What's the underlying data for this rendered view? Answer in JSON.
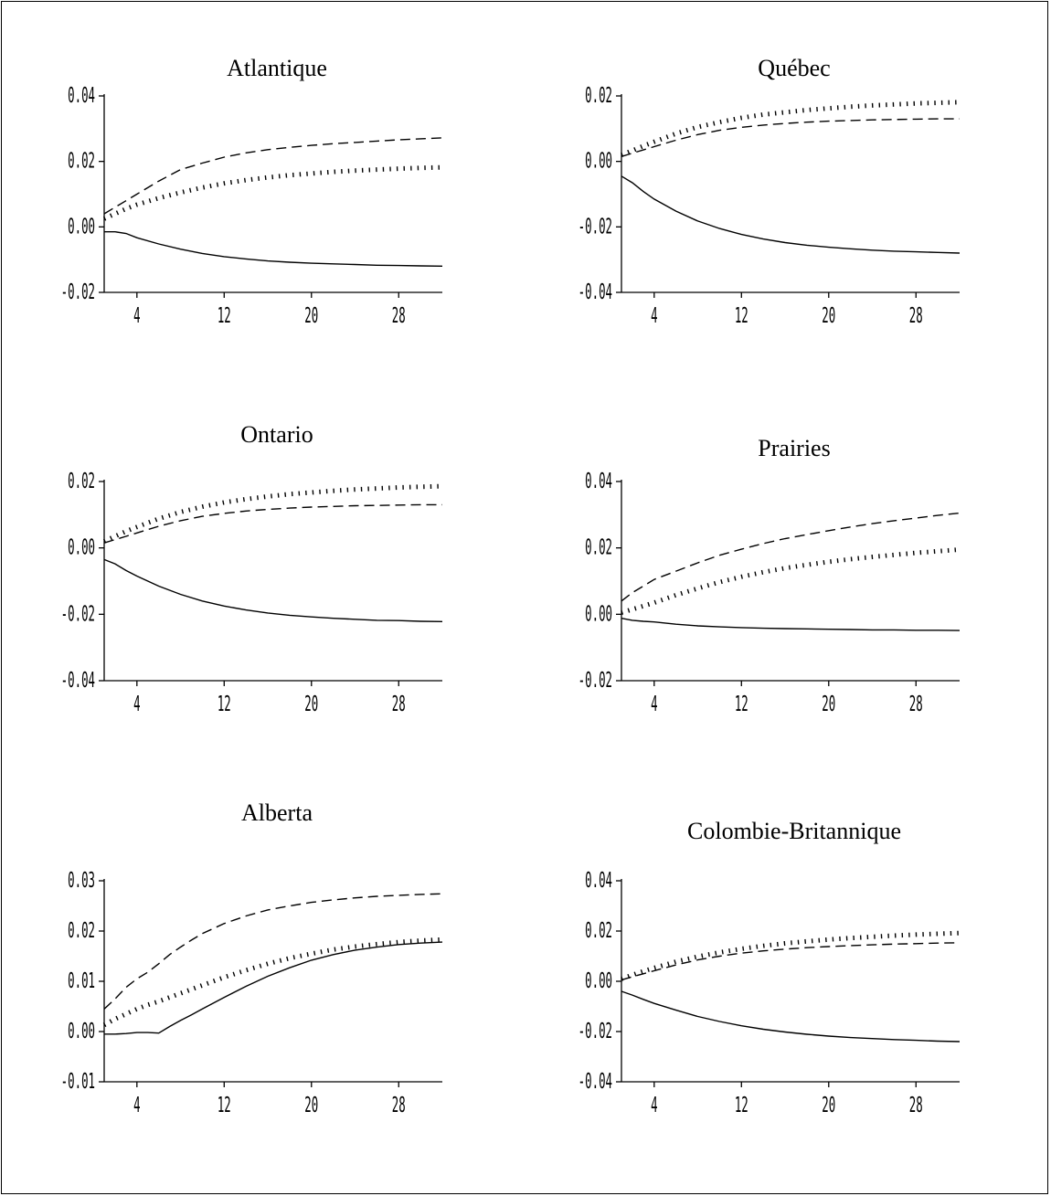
{
  "chart_data": [
    {
      "type": "line",
      "title": "Atlantique",
      "xlabel": "",
      "ylabel": "",
      "xlim": [
        1,
        32
      ],
      "ylim": [
        -0.02,
        0.04
      ],
      "xticks": [
        4,
        12,
        20,
        28
      ],
      "xtick_labels": [
        "4",
        "12",
        "20",
        "28"
      ],
      "yticks": [
        -0.02,
        0.0,
        0.02,
        0.04
      ],
      "ytick_labels": [
        "-0.02",
        "0.00",
        "0.02",
        "0.04"
      ],
      "grid": false,
      "x": [
        1,
        2,
        3,
        4,
        6,
        8,
        10,
        12,
        14,
        16,
        18,
        20,
        22,
        24,
        26,
        28,
        30,
        32
      ],
      "series": [
        {
          "style": "solid",
          "values": [
            -0.0015,
            -0.0015,
            -0.002,
            -0.0033,
            -0.0052,
            -0.0068,
            -0.0081,
            -0.0091,
            -0.0098,
            -0.0104,
            -0.0108,
            -0.0111,
            -0.0113,
            -0.0115,
            -0.0117,
            -0.0118,
            -0.0119,
            -0.012
          ]
        },
        {
          "style": "dashed",
          "values": [
            0.004,
            0.006,
            0.008,
            0.01,
            0.014,
            0.0175,
            0.0195,
            0.0213,
            0.0226,
            0.0236,
            0.0243,
            0.0249,
            0.0254,
            0.0258,
            0.0262,
            0.0266,
            0.0269,
            0.0272
          ]
        },
        {
          "style": "dotted",
          "values": [
            0.0025,
            0.004,
            0.0055,
            0.0068,
            0.0088,
            0.0105,
            0.012,
            0.0133,
            0.0143,
            0.0151,
            0.0158,
            0.0163,
            0.0168,
            0.0172,
            0.0175,
            0.0178,
            0.018,
            0.0182
          ]
        }
      ]
    },
    {
      "type": "line",
      "title": "Québec",
      "xlabel": "",
      "ylabel": "",
      "xlim": [
        1,
        32
      ],
      "ylim": [
        -0.04,
        0.02
      ],
      "xticks": [
        4,
        12,
        20,
        28
      ],
      "xtick_labels": [
        "4",
        "12",
        "20",
        "28"
      ],
      "yticks": [
        -0.04,
        -0.02,
        0.0,
        0.02
      ],
      "ytick_labels": [
        "-0.04",
        "-0.02",
        "0.00",
        "0.02"
      ],
      "grid": false,
      "x": [
        1,
        2,
        3,
        4,
        6,
        8,
        10,
        12,
        14,
        16,
        18,
        20,
        22,
        24,
        26,
        28,
        30,
        32
      ],
      "series": [
        {
          "style": "solid",
          "values": [
            -0.0045,
            -0.0065,
            -0.0092,
            -0.0115,
            -0.0152,
            -0.0182,
            -0.0205,
            -0.0223,
            -0.0237,
            -0.0248,
            -0.0256,
            -0.0262,
            -0.0267,
            -0.0271,
            -0.0274,
            -0.0276,
            -0.0278,
            -0.028
          ]
        },
        {
          "style": "dashed",
          "values": [
            0.0015,
            0.0025,
            0.0035,
            0.0045,
            0.0065,
            0.0082,
            0.0095,
            0.0104,
            0.0111,
            0.0116,
            0.012,
            0.0123,
            0.0125,
            0.0127,
            0.0128,
            0.0129,
            0.013,
            0.013
          ]
        },
        {
          "style": "dotted",
          "values": [
            0.002,
            0.0033,
            0.0047,
            0.006,
            0.0085,
            0.0105,
            0.012,
            0.0133,
            0.0143,
            0.015,
            0.0157,
            0.0162,
            0.0167,
            0.0171,
            0.0174,
            0.0177,
            0.0179,
            0.0181
          ]
        }
      ]
    },
    {
      "type": "line",
      "title": "Ontario",
      "xlabel": "",
      "ylabel": "",
      "xlim": [
        1,
        32
      ],
      "ylim": [
        -0.04,
        0.02
      ],
      "xticks": [
        4,
        12,
        20,
        28
      ],
      "xtick_labels": [
        "4",
        "12",
        "20",
        "28"
      ],
      "yticks": [
        -0.04,
        -0.02,
        0.0,
        0.02
      ],
      "ytick_labels": [
        "-0.04",
        "-0.02",
        "0.00",
        "0.02"
      ],
      "grid": false,
      "x": [
        1,
        2,
        3,
        4,
        6,
        8,
        10,
        12,
        14,
        16,
        18,
        20,
        22,
        24,
        26,
        28,
        30,
        32
      ],
      "series": [
        {
          "style": "solid",
          "values": [
            -0.0035,
            -0.0048,
            -0.0068,
            -0.0085,
            -0.0115,
            -0.014,
            -0.016,
            -0.0175,
            -0.0187,
            -0.0196,
            -0.0203,
            -0.0208,
            -0.0212,
            -0.0215,
            -0.0218,
            -0.0219,
            -0.0221,
            -0.0222
          ]
        },
        {
          "style": "dashed",
          "values": [
            0.0015,
            0.0025,
            0.0035,
            0.0045,
            0.0065,
            0.0082,
            0.0095,
            0.0104,
            0.0111,
            0.0116,
            0.012,
            0.0123,
            0.0125,
            0.0127,
            0.0128,
            0.0129,
            0.013,
            0.013
          ]
        },
        {
          "style": "dotted",
          "values": [
            0.002,
            0.0035,
            0.005,
            0.0063,
            0.0088,
            0.0108,
            0.0124,
            0.0137,
            0.0147,
            0.0155,
            0.0162,
            0.0167,
            0.0172,
            0.0176,
            0.0179,
            0.0182,
            0.0184,
            0.0186
          ]
        }
      ]
    },
    {
      "type": "line",
      "title": "Prairies",
      "xlabel": "",
      "ylabel": "",
      "xlim": [
        1,
        32
      ],
      "ylim": [
        -0.02,
        0.04
      ],
      "xticks": [
        4,
        12,
        20,
        28
      ],
      "xtick_labels": [
        "4",
        "12",
        "20",
        "28"
      ],
      "yticks": [
        -0.02,
        0.0,
        0.02,
        0.04
      ],
      "ytick_labels": [
        "-0.02",
        "0.00",
        "0.02",
        "0.04"
      ],
      "grid": false,
      "x": [
        1,
        2,
        3,
        4,
        6,
        8,
        10,
        12,
        14,
        16,
        18,
        20,
        22,
        24,
        26,
        28,
        30,
        32
      ],
      "series": [
        {
          "style": "solid",
          "values": [
            -0.0012,
            -0.0018,
            -0.0021,
            -0.0023,
            -0.003,
            -0.0035,
            -0.0038,
            -0.004,
            -0.0042,
            -0.0043,
            -0.0044,
            -0.0045,
            -0.0046,
            -0.0047,
            -0.0047,
            -0.0048,
            -0.0048,
            -0.0049
          ]
        },
        {
          "style": "dashed",
          "values": [
            0.004,
            0.0065,
            0.0085,
            0.0105,
            0.013,
            0.0155,
            0.0178,
            0.0196,
            0.0213,
            0.0228,
            0.024,
            0.0252,
            0.0263,
            0.0273,
            0.0282,
            0.029,
            0.0298,
            0.0305
          ]
        },
        {
          "style": "dotted",
          "values": [
            0.0005,
            0.0015,
            0.0025,
            0.0035,
            0.0058,
            0.0078,
            0.0097,
            0.0113,
            0.0127,
            0.0139,
            0.0149,
            0.0158,
            0.0166,
            0.0173,
            0.0179,
            0.0185,
            0.019,
            0.0195
          ]
        }
      ]
    },
    {
      "type": "line",
      "title": "Alberta",
      "xlabel": "",
      "ylabel": "",
      "xlim": [
        1,
        32
      ],
      "ylim": [
        -0.01,
        0.03
      ],
      "xticks": [
        4,
        12,
        20,
        28
      ],
      "xtick_labels": [
        "4",
        "12",
        "20",
        "28"
      ],
      "yticks": [
        -0.01,
        0.0,
        0.01,
        0.02,
        0.03
      ],
      "ytick_labels": [
        "-0.01",
        "0.00",
        "0.01",
        "0.02",
        "0.03"
      ],
      "grid": false,
      "x": [
        1,
        2,
        3,
        4,
        5,
        6,
        7,
        8,
        9,
        10,
        12,
        14,
        16,
        18,
        20,
        22,
        24,
        26,
        28,
        30,
        32
      ],
      "series": [
        {
          "style": "solid",
          "values": [
            -0.0005,
            -0.0005,
            -0.0004,
            -0.0002,
            -0.0002,
            -0.0003,
            0.001,
            0.0022,
            0.0033,
            0.0045,
            0.0068,
            0.009,
            0.011,
            0.0127,
            0.0142,
            0.0153,
            0.0162,
            0.0168,
            0.0173,
            0.0176,
            0.0178
          ]
        },
        {
          "style": "dashed",
          "values": [
            0.0045,
            0.0065,
            0.0088,
            0.0105,
            0.0118,
            0.0135,
            0.0153,
            0.0168,
            0.0182,
            0.0195,
            0.0215,
            0.023,
            0.0242,
            0.025,
            0.0257,
            0.0262,
            0.0266,
            0.0269,
            0.0271,
            0.0273,
            0.0274
          ]
        },
        {
          "style": "dotted",
          "values": [
            0.0013,
            0.0025,
            0.0035,
            0.0045,
            0.0053,
            0.006,
            0.0068,
            0.0076,
            0.0084,
            0.0092,
            0.0108,
            0.0122,
            0.0135,
            0.0146,
            0.0155,
            0.0163,
            0.0169,
            0.0174,
            0.0178,
            0.0181,
            0.0183
          ]
        }
      ]
    },
    {
      "type": "line",
      "title": "Colombie-Britannique",
      "xlabel": "",
      "ylabel": "",
      "xlim": [
        1,
        32
      ],
      "ylim": [
        -0.04,
        0.04
      ],
      "xticks": [
        4,
        12,
        20,
        28
      ],
      "xtick_labels": [
        "4",
        "12",
        "20",
        "28"
      ],
      "yticks": [
        -0.04,
        -0.02,
        0.0,
        0.02,
        0.04
      ],
      "ytick_labels": [
        "-0.04",
        "-0.02",
        "0.00",
        "0.02",
        "0.04"
      ],
      "grid": false,
      "x": [
        1,
        2,
        3,
        4,
        6,
        8,
        10,
        12,
        14,
        16,
        18,
        20,
        22,
        24,
        26,
        28,
        30,
        32
      ],
      "series": [
        {
          "style": "solid",
          "values": [
            -0.004,
            -0.0055,
            -0.0072,
            -0.0088,
            -0.0115,
            -0.014,
            -0.016,
            -0.0177,
            -0.0191,
            -0.0202,
            -0.0211,
            -0.0218,
            -0.0224,
            -0.0228,
            -0.0232,
            -0.0235,
            -0.0238,
            -0.024
          ]
        },
        {
          "style": "dashed",
          "values": [
            0.0005,
            0.0018,
            0.003,
            0.0042,
            0.0065,
            0.0085,
            0.01,
            0.0112,
            0.0121,
            0.0128,
            0.0134,
            0.0138,
            0.0142,
            0.0145,
            0.0148,
            0.015,
            0.0152,
            0.0153
          ]
        },
        {
          "style": "dotted",
          "values": [
            0.001,
            0.0025,
            0.004,
            0.0053,
            0.0078,
            0.0098,
            0.0115,
            0.0129,
            0.0141,
            0.0151,
            0.0159,
            0.0166,
            0.0172,
            0.0177,
            0.0182,
            0.0186,
            0.0189,
            0.0192
          ]
        }
      ]
    }
  ]
}
